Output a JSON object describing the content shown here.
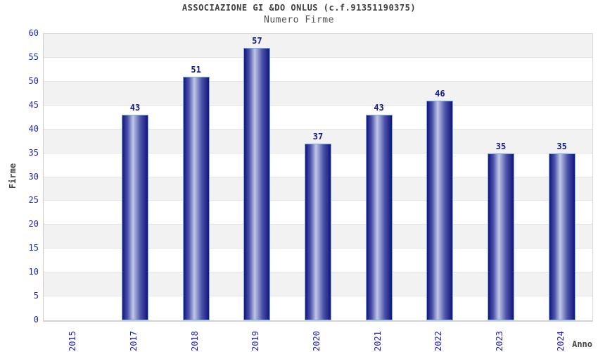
{
  "header": {
    "title": "ASSOCIAZIONE GI &DO ONLUS (c.f.91351190375)",
    "subtitle": "Numero Firme"
  },
  "chart_data": {
    "type": "bar",
    "title": "ASSOCIAZIONE GI &DO ONLUS (c.f.91351190375)",
    "subtitle": "Numero Firme",
    "xlabel": "Anno",
    "ylabel": "Firme",
    "categories": [
      "2015",
      "2017",
      "2018",
      "2019",
      "2020",
      "2021",
      "2022",
      "2023",
      "2024"
    ],
    "values": [
      0,
      43,
      51,
      57,
      37,
      43,
      46,
      35,
      35
    ],
    "ylim": [
      0,
      60
    ],
    "yticks": [
      0,
      5,
      10,
      15,
      20,
      25,
      30,
      35,
      40,
      45,
      50,
      55,
      60
    ],
    "grid": "horizontal gridlines every 5 with alternating gray/white bands",
    "legend": "none",
    "bar_labels_shown": true
  },
  "colors": {
    "tick_label": "#2222cc",
    "value_label": "#16168c",
    "title": "#3f3f3f",
    "subtitle": "#4f4f4f",
    "axis_name": "#454545",
    "band_gray": "#f2f2f2",
    "band_white": "#ffffff",
    "gridline": "#e3e3e3",
    "plot_border": "#d9d9d9",
    "bar_border": "#7ab0e6",
    "bar_edge_dark": "#14147c",
    "bar_mid_dark": "#4a51a8",
    "bar_center_light": "#c0c7e8"
  }
}
